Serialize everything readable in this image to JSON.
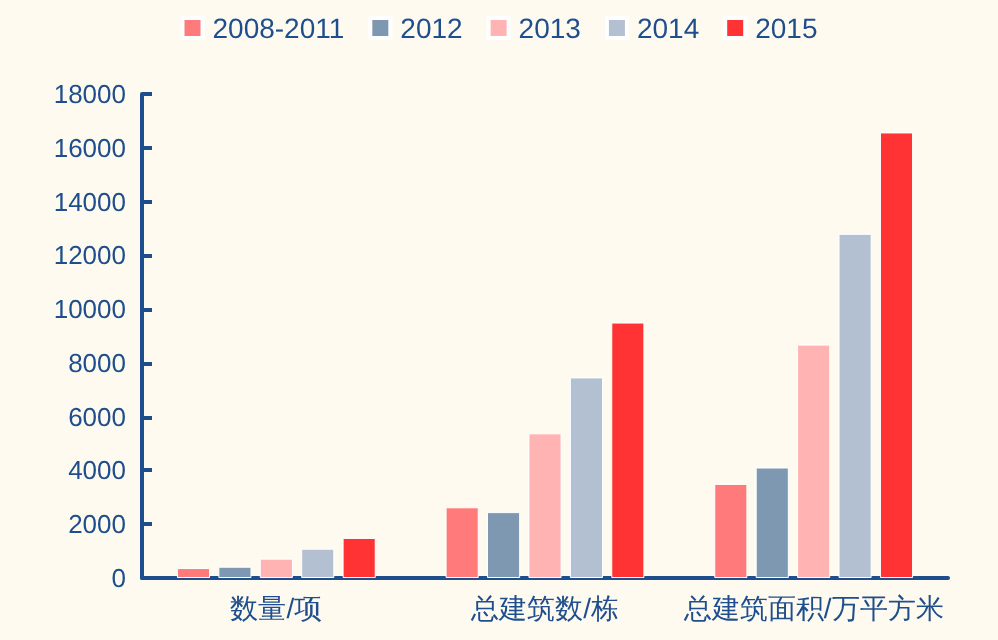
{
  "chart_data": {
    "type": "bar",
    "categories": [
      "数量/项",
      "总建筑数/栋",
      "总建筑面积/万平方米"
    ],
    "series": [
      {
        "name": "2008-2011",
        "color": "#ff7b7b",
        "values": [
          370,
          2630,
          3500
        ]
      },
      {
        "name": "2012",
        "color": "#7f98b2",
        "values": [
          420,
          2450,
          4110
        ]
      },
      {
        "name": "2013",
        "color": "#ffb3b3",
        "values": [
          720,
          5380,
          8680
        ]
      },
      {
        "name": "2014",
        "color": "#b2c0d2",
        "values": [
          1090,
          7460,
          12800
        ]
      },
      {
        "name": "2015",
        "color": "#ff3333",
        "values": [
          1490,
          9500,
          16570
        ]
      }
    ],
    "ylim": [
      0,
      18000
    ],
    "yticks": [
      0,
      2000,
      4000,
      6000,
      8000,
      10000,
      12000,
      14000,
      16000,
      18000
    ],
    "grid": false,
    "legend": "top"
  }
}
